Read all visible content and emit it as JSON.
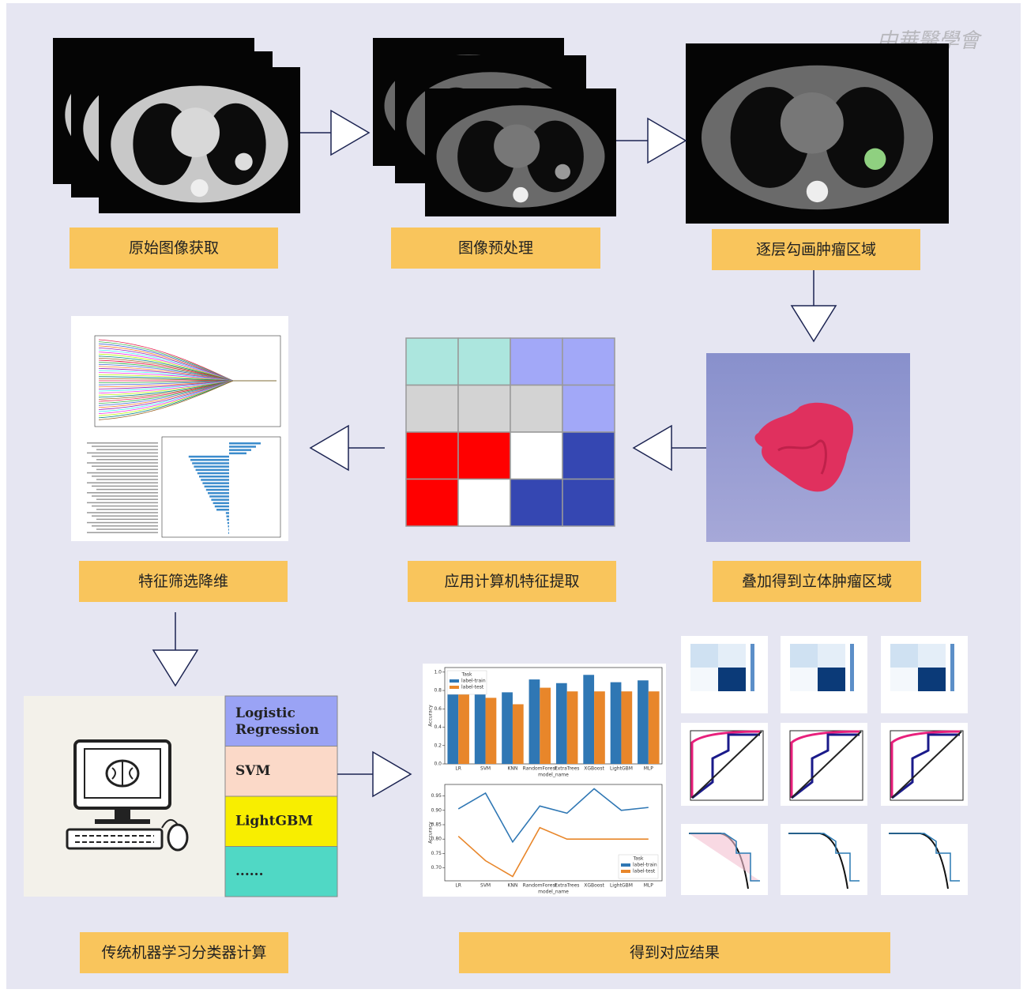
{
  "watermark": "中華醫學會",
  "steps": [
    "原始图像获取",
    "图像预处理",
    "逐层勾画肿瘤区域",
    "叠加得到立体肿瘤区域",
    "应用计算机特征提取",
    "特征筛选降维",
    "传统机器学习分类器计算",
    "得到对应结果"
  ],
  "classifiers": [
    "Logistic Regression",
    "SVM",
    "LightGBM",
    "......"
  ],
  "accuracy_charts": {
    "categories": [
      "LR",
      "SVM",
      "KNN",
      "RandomForest",
      "ExtraTrees",
      "XGBoost",
      "LightGBM",
      "MLP"
    ],
    "x_label": "model_name",
    "y_label": "Accuracy",
    "legend_title": "Task",
    "series": [
      {
        "name": "label-train",
        "color": "#2f77b4",
        "bar_values": [
          0.85,
          0.88,
          0.78,
          0.92,
          0.88,
          0.97,
          0.89,
          0.91
        ],
        "line_values": [
          0.905,
          0.96,
          0.79,
          0.915,
          0.89,
          0.975,
          0.9,
          0.91
        ]
      },
      {
        "name": "label-test",
        "color": "#e8862a",
        "bar_values": [
          0.8,
          0.72,
          0.65,
          0.83,
          0.79,
          0.79,
          0.79,
          0.79
        ],
        "line_values": [
          0.81,
          0.725,
          0.67,
          0.84,
          0.8,
          0.8,
          0.8,
          0.8
        ]
      }
    ],
    "bar_ylim": [
      0,
      1.05
    ],
    "bar_yticks": [
      {
        "value": 0,
        "label": "0.0"
      },
      {
        "value": 0.2,
        "label": "0.2"
      },
      {
        "value": 0.4,
        "label": "0.4"
      },
      {
        "value": 0.6,
        "label": "0.6"
      },
      {
        "value": 0.8,
        "label": "0.8"
      },
      {
        "value": 1,
        "label": "1.0"
      }
    ],
    "line_ylim": [
      0.655,
      0.99
    ],
    "line_yticks": [
      {
        "value": 0.7,
        "label": "0.70"
      },
      0.75,
      {
        "value": 0.8,
        "label": "0.80"
      },
      0.85,
      {
        "value": 0.9,
        "label": "0.90"
      },
      0.95
    ]
  }
}
